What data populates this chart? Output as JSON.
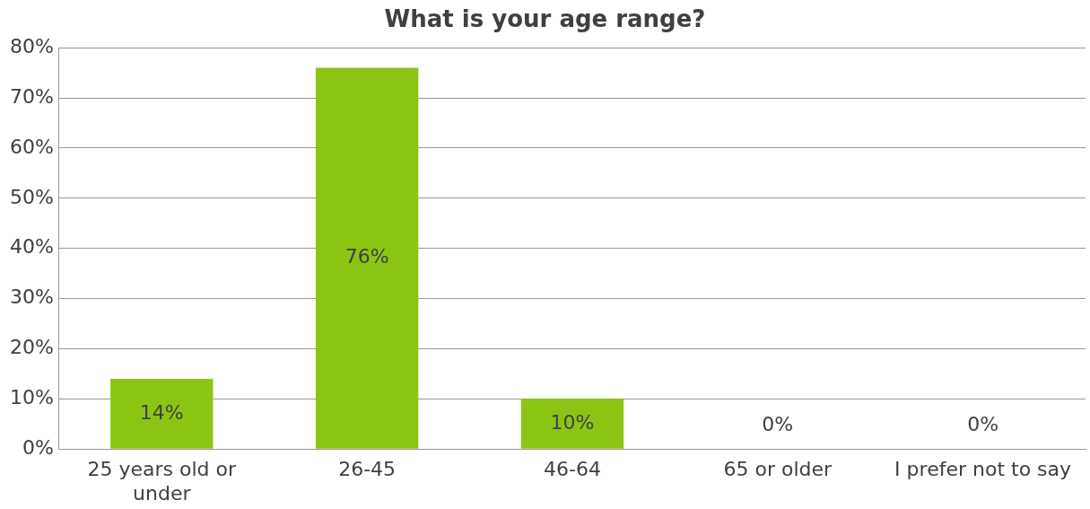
{
  "chart_data": {
    "type": "bar",
    "title": "What is your age range?",
    "categories": [
      "25 years old or under",
      "26-45",
      "46-64",
      "65 or older",
      "I prefer not to say"
    ],
    "values": [
      14,
      76,
      10,
      0,
      0
    ],
    "value_labels": [
      "14%",
      "76%",
      "10%",
      "0%",
      "0%"
    ],
    "color": "#8cc414",
    "ylim": [
      0,
      80
    ],
    "yticks": [
      {
        "value": 0,
        "label": "0%"
      },
      {
        "value": 10,
        "label": "10%"
      },
      {
        "value": 20,
        "label": "20%"
      },
      {
        "value": 30,
        "label": "30%"
      },
      {
        "value": 40,
        "label": "40%"
      },
      {
        "value": 50,
        "label": "50%"
      },
      {
        "value": 60,
        "label": "60%"
      },
      {
        "value": 70,
        "label": "70%"
      },
      {
        "value": 80,
        "label": "80%"
      }
    ],
    "grid": "y",
    "legend": false
  }
}
